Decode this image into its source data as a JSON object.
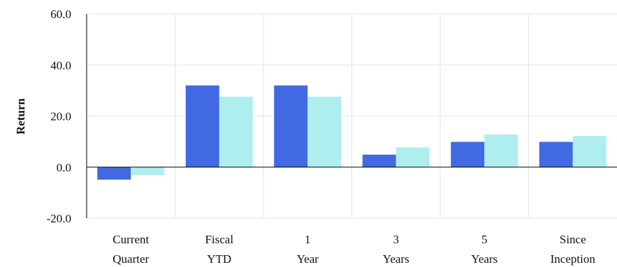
{
  "chart_data": {
    "type": "bar",
    "title": "",
    "xlabel": "",
    "ylabel": "Return",
    "ylim": [
      -20,
      60
    ],
    "yticks": [
      -20,
      0,
      20,
      40,
      60
    ],
    "categories": [
      [
        "Current",
        "Quarter"
      ],
      [
        "Fiscal",
        "YTD"
      ],
      [
        "1",
        "Year"
      ],
      [
        "3",
        "Years"
      ],
      [
        "5",
        "Years"
      ],
      [
        "Since",
        "Inception"
      ]
    ],
    "series": [
      {
        "values": [
          -4.9,
          32.0,
          32.0,
          4.9,
          9.9,
          9.9
        ],
        "color": "#4169e1"
      },
      {
        "values": [
          -3.1,
          27.6,
          27.6,
          7.7,
          12.8,
          12.2
        ],
        "color": "#afeeee"
      }
    ],
    "grid": true,
    "grid_color": "#e6e6e6",
    "legend": "none"
  }
}
